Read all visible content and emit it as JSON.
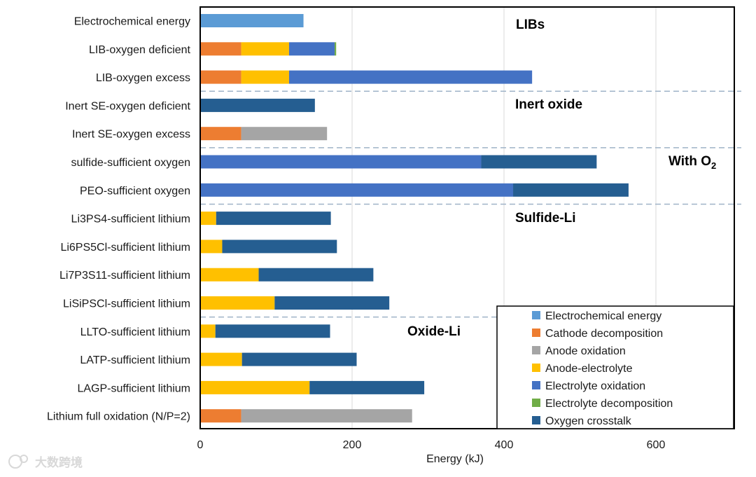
{
  "chart_data": {
    "type": "bar",
    "orientation": "horizontal",
    "stacked": true,
    "title": "",
    "xlabel": "Energy (kJ)",
    "ylabel": "",
    "xlim": [
      0,
      700
    ],
    "xticks": [
      0,
      200,
      400,
      600
    ],
    "grid": true,
    "legend_position": "bottom-right",
    "categories": [
      "Electrochemical energy",
      "LIB-oxygen deficient",
      "LIB-oxygen excess",
      "Inert SE-oxygen deficient",
      "Inert SE-oxygen excess",
      "sulfide-sufficient oxygen",
      "PEO-sufficient oxygen",
      "Li3PS4-sufficient lithium",
      "Li6PS5Cl-sufficient lithium",
      "Li7P3S11-sufficient lithium",
      "LiSiPSCl-sufficient lithium",
      "LLTO-sufficient lithium",
      "LATP-sufficient lithium",
      "LAGP-sufficient lithium",
      "Lithium full oxidation (N/P=2)"
    ],
    "series": [
      {
        "name": "Electrochemical energy",
        "color": "#5B9BD5",
        "values": [
          136,
          0,
          0,
          0,
          0,
          0,
          0,
          0,
          0,
          0,
          0,
          0,
          0,
          0,
          0
        ]
      },
      {
        "name": "Cathode decomposition",
        "color": "#ED7D31",
        "values": [
          0,
          54,
          54,
          0,
          54,
          0,
          0,
          0,
          0,
          0,
          0,
          0,
          0,
          0,
          54
        ]
      },
      {
        "name": "Anode oxidation",
        "color": "#A5A5A5",
        "values": [
          0,
          0,
          0,
          0,
          113,
          0,
          0,
          0,
          0,
          0,
          0,
          0,
          0,
          0,
          225
        ]
      },
      {
        "name": "Anode-electrolyte",
        "color": "#FFC000",
        "values": [
          0,
          63,
          63,
          0,
          0,
          0,
          0,
          21,
          29,
          77,
          98,
          20,
          55,
          144,
          0
        ]
      },
      {
        "name": "Electrolyte oxidation",
        "color": "#4472C4",
        "values": [
          0,
          60,
          320,
          0,
          0,
          370,
          412,
          0,
          0,
          0,
          0,
          0,
          0,
          0,
          0
        ]
      },
      {
        "name": "Electrolyte decomposition",
        "color": "#70AD47",
        "values": [
          0,
          2,
          0,
          0,
          0,
          0,
          0,
          0,
          0,
          0,
          0,
          0,
          0,
          0,
          0
        ]
      },
      {
        "name": "Oxygen crosstalk",
        "color": "#255E91",
        "values": [
          0,
          0,
          0,
          151,
          0,
          152,
          152,
          151,
          151,
          151,
          151,
          151,
          151,
          151,
          0
        ]
      }
    ],
    "group_labels": [
      "LIBs",
      "Inert oxide",
      "With O",
      "Sulfide-Li",
      "Oxide-Li"
    ],
    "group_label_subscript": "2"
  },
  "watermark": {
    "text": "大数跨境"
  }
}
